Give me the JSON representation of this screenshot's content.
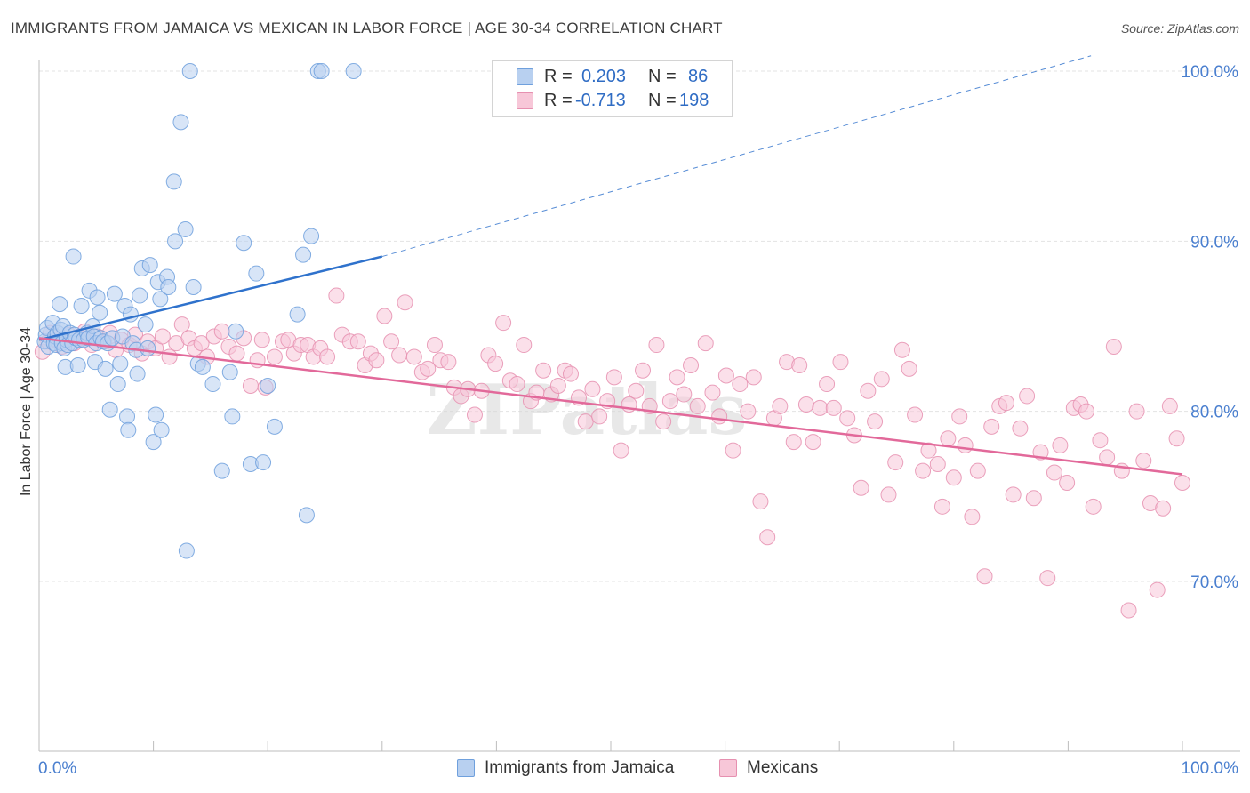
{
  "title": "IMMIGRANTS FROM JAMAICA VS MEXICAN IN LABOR FORCE | AGE 30-34 CORRELATION CHART",
  "source": "Source: ZipAtlas.com",
  "watermark": "ZIPatlas",
  "stats": [
    {
      "r_label": "R =",
      "r_value": "0.203",
      "n_label": "N =",
      "n_value": "86",
      "color": "#6fa0dd"
    },
    {
      "r_label": "R =",
      "r_value": "-0.713",
      "n_label": "N =",
      "n_value": "198",
      "color": "#e67aa0"
    }
  ],
  "legend": [
    {
      "label": "Immigrants from Jamaica",
      "color": "#6fa0dd"
    },
    {
      "label": "Mexicans",
      "color": "#e67aa0"
    }
  ],
  "chart_data": {
    "type": "scatter",
    "ylabel": "In Labor Force | Age 30-34",
    "x_tick_labels": [
      "0.0%",
      "100.0%"
    ],
    "y_tick_labels": [
      "70.0%",
      "80.0%",
      "90.0%",
      "100.0%"
    ],
    "y_ticks": [
      70,
      80,
      90,
      100
    ],
    "xlim": [
      0,
      100
    ],
    "ylim": [
      60,
      101
    ],
    "grid": true,
    "legend_position": "bottom-center",
    "colors": {
      "jamaica_fill": "#b8d0f0",
      "jamaica_edge": "#6fa0dd",
      "jamaica_line": "#2f72cc",
      "mexican_fill": "#f7c7d8",
      "mexican_edge": "#e690b0",
      "mexican_line": "#e2699a",
      "axis_text": "#4a7fcf"
    },
    "series": [
      {
        "name": "Immigrants from Jamaica",
        "trend": {
          "x": [
            0,
            30,
            92
          ],
          "y": [
            84.2,
            89.1,
            100.9
          ],
          "solid_until": 30
        },
        "points": [
          [
            0.5,
            84.1
          ],
          [
            0.6,
            84.5
          ],
          [
            0.7,
            84.9
          ],
          [
            0.8,
            83.8
          ],
          [
            1.2,
            85.2
          ],
          [
            1.3,
            84.0
          ],
          [
            1.4,
            84.4
          ],
          [
            1.5,
            83.9
          ],
          [
            1.6,
            84.6
          ],
          [
            1.8,
            86.3
          ],
          [
            1.9,
            84.8
          ],
          [
            2.0,
            84.0
          ],
          [
            2.1,
            85.0
          ],
          [
            2.2,
            83.7
          ],
          [
            2.3,
            82.6
          ],
          [
            2.4,
            84.2
          ],
          [
            2.5,
            83.9
          ],
          [
            2.7,
            84.6
          ],
          [
            2.9,
            84.0
          ],
          [
            3.0,
            89.1
          ],
          [
            3.1,
            84.5
          ],
          [
            3.2,
            84.3
          ],
          [
            3.4,
            82.7
          ],
          [
            3.5,
            84.2
          ],
          [
            3.7,
            86.2
          ],
          [
            3.9,
            84.2
          ],
          [
            4.2,
            84.6
          ],
          [
            4.3,
            84.3
          ],
          [
            4.4,
            87.1
          ],
          [
            4.7,
            85.0
          ],
          [
            4.8,
            84.4
          ],
          [
            4.9,
            82.9
          ],
          [
            5.0,
            84.0
          ],
          [
            5.1,
            86.7
          ],
          [
            5.3,
            85.8
          ],
          [
            5.4,
            84.3
          ],
          [
            5.6,
            84.1
          ],
          [
            5.8,
            82.5
          ],
          [
            6.0,
            84.0
          ],
          [
            6.2,
            80.1
          ],
          [
            6.4,
            84.3
          ],
          [
            6.6,
            86.9
          ],
          [
            6.9,
            81.6
          ],
          [
            7.1,
            82.8
          ],
          [
            7.3,
            84.4
          ],
          [
            7.5,
            86.2
          ],
          [
            7.7,
            79.7
          ],
          [
            7.8,
            78.9
          ],
          [
            8.0,
            85.7
          ],
          [
            8.2,
            84.0
          ],
          [
            8.5,
            83.6
          ],
          [
            8.6,
            82.2
          ],
          [
            8.8,
            86.8
          ],
          [
            9.0,
            88.4
          ],
          [
            9.3,
            85.1
          ],
          [
            9.5,
            83.7
          ],
          [
            9.7,
            88.6
          ],
          [
            10.0,
            78.2
          ],
          [
            10.2,
            79.8
          ],
          [
            10.4,
            87.6
          ],
          [
            10.6,
            86.6
          ],
          [
            10.7,
            78.9
          ],
          [
            11.2,
            87.9
          ],
          [
            11.3,
            87.3
          ],
          [
            11.8,
            93.5
          ],
          [
            11.9,
            90.0
          ],
          [
            12.4,
            97.0
          ],
          [
            12.8,
            90.7
          ],
          [
            12.9,
            71.8
          ],
          [
            13.2,
            100.0
          ],
          [
            13.5,
            87.3
          ],
          [
            13.9,
            82.8
          ],
          [
            14.3,
            82.6
          ],
          [
            15.2,
            81.6
          ],
          [
            16.0,
            76.5
          ],
          [
            16.7,
            82.3
          ],
          [
            16.9,
            79.7
          ],
          [
            17.2,
            84.7
          ],
          [
            17.9,
            89.9
          ],
          [
            18.5,
            76.9
          ],
          [
            19.0,
            88.1
          ],
          [
            19.6,
            77.0
          ],
          [
            20.0,
            81.5
          ],
          [
            20.6,
            79.1
          ],
          [
            22.6,
            85.7
          ],
          [
            23.1,
            89.2
          ],
          [
            23.4,
            73.9
          ],
          [
            23.8,
            90.3
          ],
          [
            24.4,
            100.0
          ],
          [
            24.7,
            100.0
          ],
          [
            27.5,
            100.0
          ]
        ]
      },
      {
        "name": "Mexicans",
        "trend": {
          "x": [
            0,
            100
          ],
          "y": [
            84.3,
            76.3
          ]
        },
        "points": [
          [
            0.3,
            83.5
          ],
          [
            0.8,
            84.1
          ],
          [
            1.0,
            84.6
          ],
          [
            1.5,
            84.2
          ],
          [
            2.0,
            83.8
          ],
          [
            2.6,
            84.5
          ],
          [
            3.1,
            84.0
          ],
          [
            3.6,
            84.3
          ],
          [
            4.0,
            84.7
          ],
          [
            4.6,
            83.9
          ],
          [
            5.1,
            84.4
          ],
          [
            5.7,
            84.1
          ],
          [
            6.2,
            84.6
          ],
          [
            6.7,
            83.6
          ],
          [
            7.2,
            84.2
          ],
          [
            7.9,
            83.9
          ],
          [
            8.4,
            84.5
          ],
          [
            9.0,
            83.4
          ],
          [
            9.5,
            84.1
          ],
          [
            10.2,
            83.7
          ],
          [
            10.8,
            84.4
          ],
          [
            11.4,
            83.2
          ],
          [
            12.0,
            84.0
          ],
          [
            12.5,
            85.1
          ],
          [
            13.1,
            84.3
          ],
          [
            13.6,
            83.7
          ],
          [
            14.2,
            84.0
          ],
          [
            14.7,
            83.2
          ],
          [
            15.3,
            84.4
          ],
          [
            16.0,
            84.7
          ],
          [
            16.6,
            83.8
          ],
          [
            17.3,
            83.4
          ],
          [
            17.9,
            84.3
          ],
          [
            18.5,
            81.5
          ],
          [
            19.1,
            83.0
          ],
          [
            19.5,
            84.2
          ],
          [
            19.8,
            81.4
          ],
          [
            20.6,
            83.2
          ],
          [
            21.3,
            84.1
          ],
          [
            21.8,
            84.2
          ],
          [
            22.3,
            83.4
          ],
          [
            22.9,
            83.9
          ],
          [
            23.5,
            83.9
          ],
          [
            24.0,
            83.2
          ],
          [
            24.6,
            83.7
          ],
          [
            25.2,
            83.2
          ],
          [
            26.0,
            86.8
          ],
          [
            26.5,
            84.5
          ],
          [
            27.2,
            84.1
          ],
          [
            27.9,
            84.1
          ],
          [
            28.5,
            82.7
          ],
          [
            29.0,
            83.4
          ],
          [
            29.5,
            83.0
          ],
          [
            30.2,
            85.6
          ],
          [
            30.8,
            84.1
          ],
          [
            31.5,
            83.3
          ],
          [
            32.0,
            86.4
          ],
          [
            32.8,
            83.2
          ],
          [
            33.5,
            82.3
          ],
          [
            34.0,
            82.5
          ],
          [
            34.6,
            83.9
          ],
          [
            35.1,
            83.0
          ],
          [
            35.8,
            82.9
          ],
          [
            36.3,
            81.4
          ],
          [
            36.9,
            80.9
          ],
          [
            37.5,
            81.3
          ],
          [
            38.1,
            79.8
          ],
          [
            38.7,
            81.2
          ],
          [
            39.3,
            83.3
          ],
          [
            39.9,
            82.8
          ],
          [
            40.6,
            85.2
          ],
          [
            41.2,
            81.8
          ],
          [
            41.8,
            81.6
          ],
          [
            42.4,
            83.9
          ],
          [
            43.0,
            80.6
          ],
          [
            43.5,
            81.1
          ],
          [
            44.1,
            82.4
          ],
          [
            44.8,
            81.0
          ],
          [
            45.4,
            81.5
          ],
          [
            46.0,
            82.4
          ],
          [
            46.5,
            82.2
          ],
          [
            47.2,
            80.8
          ],
          [
            47.8,
            79.4
          ],
          [
            48.4,
            81.3
          ],
          [
            49.0,
            79.7
          ],
          [
            49.7,
            80.6
          ],
          [
            50.3,
            82.0
          ],
          [
            50.9,
            77.7
          ],
          [
            51.6,
            80.4
          ],
          [
            52.2,
            81.2
          ],
          [
            52.8,
            82.4
          ],
          [
            53.4,
            80.3
          ],
          [
            54.0,
            83.9
          ],
          [
            54.6,
            79.4
          ],
          [
            55.2,
            80.6
          ],
          [
            55.8,
            82.0
          ],
          [
            56.4,
            81.0
          ],
          [
            57.0,
            82.7
          ],
          [
            57.6,
            80.3
          ],
          [
            58.3,
            84.0
          ],
          [
            58.9,
            81.1
          ],
          [
            59.5,
            79.7
          ],
          [
            60.1,
            82.1
          ],
          [
            60.7,
            77.7
          ],
          [
            61.3,
            81.6
          ],
          [
            62.0,
            80.0
          ],
          [
            62.5,
            82.0
          ],
          [
            63.1,
            74.7
          ],
          [
            63.7,
            72.6
          ],
          [
            64.3,
            79.6
          ],
          [
            64.8,
            80.3
          ],
          [
            65.4,
            82.9
          ],
          [
            66.0,
            78.2
          ],
          [
            66.5,
            82.7
          ],
          [
            67.1,
            80.4
          ],
          [
            67.7,
            78.2
          ],
          [
            68.3,
            80.2
          ],
          [
            68.9,
            81.6
          ],
          [
            69.5,
            80.2
          ],
          [
            70.1,
            82.9
          ],
          [
            70.7,
            79.6
          ],
          [
            71.3,
            78.6
          ],
          [
            71.9,
            75.5
          ],
          [
            72.5,
            81.2
          ],
          [
            73.1,
            79.4
          ],
          [
            73.7,
            81.9
          ],
          [
            74.3,
            75.1
          ],
          [
            74.9,
            77.0
          ],
          [
            75.5,
            83.6
          ],
          [
            76.1,
            82.5
          ],
          [
            76.6,
            79.8
          ],
          [
            77.3,
            76.5
          ],
          [
            77.8,
            77.7
          ],
          [
            78.6,
            76.9
          ],
          [
            79.0,
            74.4
          ],
          [
            79.5,
            78.4
          ],
          [
            80.0,
            76.1
          ],
          [
            80.5,
            79.7
          ],
          [
            81.0,
            78.0
          ],
          [
            81.6,
            73.8
          ],
          [
            82.1,
            76.5
          ],
          [
            82.7,
            70.3
          ],
          [
            83.3,
            79.1
          ],
          [
            84.0,
            80.3
          ],
          [
            84.6,
            80.5
          ],
          [
            85.2,
            75.1
          ],
          [
            85.8,
            79.0
          ],
          [
            86.4,
            80.9
          ],
          [
            87.0,
            74.9
          ],
          [
            87.6,
            77.6
          ],
          [
            88.2,
            70.2
          ],
          [
            88.8,
            76.4
          ],
          [
            89.3,
            78.0
          ],
          [
            89.9,
            75.8
          ],
          [
            90.5,
            80.2
          ],
          [
            91.1,
            80.4
          ],
          [
            91.6,
            80.0
          ],
          [
            92.2,
            74.4
          ],
          [
            92.8,
            78.3
          ],
          [
            93.4,
            77.3
          ],
          [
            94.0,
            83.8
          ],
          [
            94.7,
            76.5
          ],
          [
            95.3,
            68.3
          ],
          [
            96.0,
            80.0
          ],
          [
            96.6,
            77.1
          ],
          [
            97.2,
            74.6
          ],
          [
            97.8,
            69.5
          ],
          [
            98.3,
            74.3
          ],
          [
            98.9,
            80.3
          ],
          [
            99.5,
            78.4
          ],
          [
            100.0,
            75.8
          ]
        ]
      }
    ]
  }
}
